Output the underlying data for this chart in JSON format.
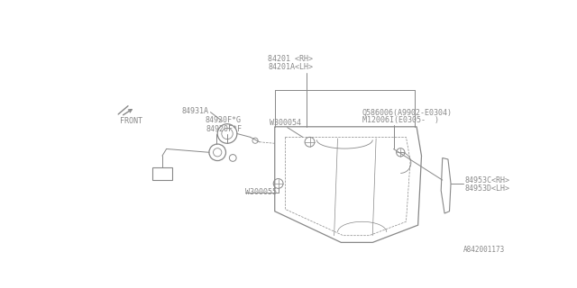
{
  "bg_color": "#ffffff",
  "line_color": "#888888",
  "text_color": "#888888",
  "diagram_id": "A842001173",
  "label_84201_rh": "84201 <RH>",
  "label_84201a_lh": "84201A<LH>",
  "label_84931A": "84931A",
  "label_84920FG": "84920F*G",
  "label_W300054": "W300054",
  "label_84920FF": "84920F*F",
  "label_W300055": "W300055",
  "label_Q586006": "Q586006(A9902-E0304)",
  "label_M12006I": "M12006I(E0305-  )",
  "label_84953C": "84953C<RH>",
  "label_84953D": "84953D<LH>",
  "label_FRONT": "FRONT"
}
